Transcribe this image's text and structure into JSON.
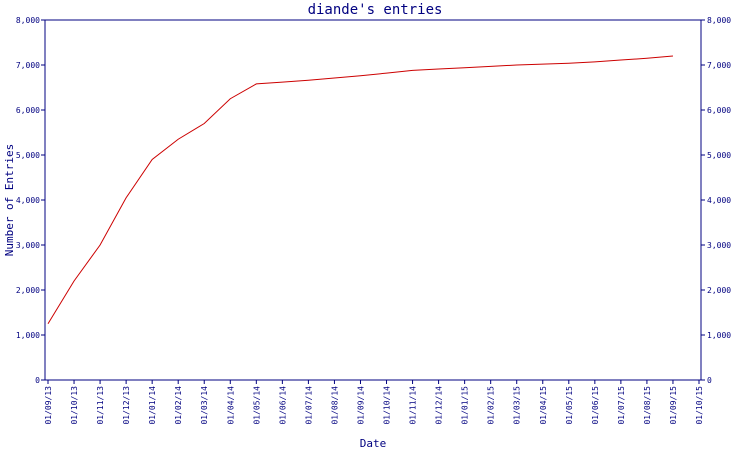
{
  "chart_data": {
    "type": "line",
    "title": "diande's entries",
    "xlabel": "Date",
    "ylabel": "Number of Entries",
    "ylim": [
      0,
      8000
    ],
    "y_ticks": [
      0,
      1000,
      2000,
      3000,
      4000,
      5000,
      6000,
      7000,
      8000
    ],
    "y_tick_labels": [
      "0",
      "1,000",
      "2,000",
      "3,000",
      "4,000",
      "5,000",
      "6,000",
      "7,000",
      "8,000"
    ],
    "x_tick_labels": [
      "01/09/13",
      "01/10/13",
      "01/11/13",
      "01/12/13",
      "01/01/14",
      "01/02/14",
      "01/03/14",
      "01/04/14",
      "01/05/14",
      "01/06/14",
      "01/07/14",
      "01/08/14",
      "01/09/14",
      "01/10/14",
      "01/11/14",
      "01/12/14",
      "01/01/15",
      "01/02/15",
      "01/03/15",
      "01/04/15",
      "01/05/15",
      "01/06/15",
      "01/07/15",
      "01/08/15",
      "01/09/15",
      "01/10/15"
    ],
    "grid": false,
    "right_axis": true,
    "series": [
      {
        "color": "#cc0000",
        "x": [
          "01/09/13",
          "01/10/13",
          "01/11/13",
          "01/12/13",
          "01/01/14",
          "01/02/14",
          "01/03/14",
          "01/04/14",
          "01/05/14",
          "01/06/14",
          "01/07/14",
          "01/08/14",
          "01/09/14",
          "01/10/14",
          "01/11/14",
          "01/12/14",
          "01/01/15",
          "01/02/15",
          "01/03/15",
          "01/04/15",
          "01/05/15",
          "01/06/15",
          "01/07/15",
          "01/08/15",
          "01/09/15"
        ],
        "y": [
          1250,
          2200,
          3000,
          4050,
          4900,
          5350,
          5700,
          6250,
          6580,
          6620,
          6660,
          6710,
          6760,
          6820,
          6880,
          6910,
          6940,
          6970,
          7000,
          7020,
          7040,
          7070,
          7110,
          7150,
          7200
        ]
      }
    ]
  }
}
